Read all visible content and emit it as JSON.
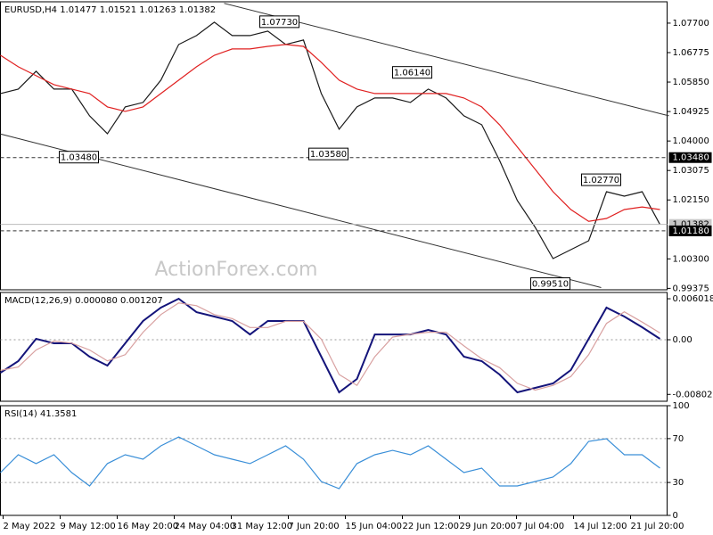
{
  "chart_data": [
    {
      "type": "line",
      "title": "EURUSD,H4  1.01477 1.01521 1.01263 1.01382",
      "watermark": "ActionForex.com",
      "x": [
        0,
        2,
        4,
        6,
        8,
        10,
        12,
        14,
        16,
        18,
        20,
        22,
        24,
        26,
        28,
        30,
        32,
        34,
        36,
        38,
        40,
        42,
        44,
        46,
        48,
        50,
        52,
        54,
        56,
        58,
        60,
        62,
        64,
        66,
        68,
        70,
        72,
        74
      ],
      "xlim": [
        0,
        74.8
      ],
      "ylim": [
        0.9933,
        1.0837
      ],
      "yticks": [
        {
          "value": 1.077,
          "label": "1.07700"
        },
        {
          "value": 1.06775,
          "label": "1.06775"
        },
        {
          "value": 1.0585,
          "label": "1.05850"
        },
        {
          "value": 1.04925,
          "label": "1.04925"
        },
        {
          "value": 1.04,
          "label": "1.04000"
        },
        {
          "value": 1.03075,
          "label": "1.03075"
        },
        {
          "value": 1.0215,
          "label": "1.02150"
        },
        {
          "value": 1.003,
          "label": "1.00300"
        },
        {
          "value": 0.99375,
          "label": "0.99375"
        }
      ],
      "series": [
        {
          "color": "#1a1a1a",
          "values": [
            1.0549,
            1.0563,
            1.0619,
            1.0563,
            1.0563,
            1.0479,
            1.0423,
            1.0507,
            1.0521,
            1.0591,
            1.0703,
            1.0731,
            1.0773,
            1.0731,
            1.0731,
            1.0745,
            1.0703,
            1.0717,
            1.0549,
            1.0437,
            1.0507,
            1.0535,
            1.0535,
            1.0521,
            1.0563,
            1.0535,
            1.0479,
            1.0451,
            1.0339,
            1.0213,
            1.0129,
            1.0031,
            1.0059,
            1.0087,
            1.0241,
            1.0227,
            1.0241,
            1.0138
          ]
        },
        {
          "color": "#e02020",
          "values": [
            1.0669,
            1.0633,
            1.0605,
            1.0577,
            1.0563,
            1.0549,
            1.0507,
            1.0493,
            1.0507,
            1.0549,
            1.0591,
            1.0633,
            1.0669,
            1.0689,
            1.0689,
            1.0697,
            1.0703,
            1.0697,
            1.0647,
            1.0591,
            1.0563,
            1.0549,
            1.0549,
            1.0549,
            1.0549,
            1.0549,
            1.0535,
            1.0507,
            1.0451,
            1.0381,
            1.0311,
            1.0241,
            1.0185,
            1.0148,
            1.0157,
            1.0185,
            1.0193,
            1.0185
          ]
        }
      ],
      "hlines": [
        {
          "value": 1.0348,
          "label": "1.03480",
          "style": "dashed"
        },
        {
          "value": 1.01382,
          "label": "1.01382",
          "style": "solid"
        },
        {
          "value": 1.0118,
          "label": "1.01180",
          "style": "dashed"
        }
      ],
      "annotations": [
        {
          "label": "1.07730",
          "x": 31.3,
          "value": 1.0773
        },
        {
          "label": "1.06140",
          "x": 46.2,
          "value": 1.0614
        },
        {
          "label": "1.03480",
          "x": 8.8,
          "value": 1.0348
        },
        {
          "label": "1.03580",
          "x": 36.8,
          "value": 1.0358
        },
        {
          "label": "1.02770",
          "x": 67.4,
          "value": 1.0277
        },
        {
          "label": "0.99510",
          "x": 61.7,
          "value": 0.9951
        }
      ],
      "trendlines": [
        {
          "x": [
            25.1,
            75
          ],
          "y": [
            1.0832,
            1.0479
          ]
        },
        {
          "x": [
            0,
            67.4
          ],
          "y": [
            1.0422,
            0.994
          ]
        }
      ]
    },
    {
      "type": "line",
      "title": "MACD(12,26,9) 0.000080 0.001207",
      "ylim": [
        -0.00903,
        0.00694
      ],
      "yticks": [
        0.006018,
        {
          "value": 0,
          "label": "0.00"
        },
        -0.00802
      ],
      "levels": [
        0
      ],
      "series": [
        {
          "color": "#14147a",
          "values": [
            -0.00484,
            -0.00314,
            0.00013,
            -0.00052,
            -0.00052,
            -0.00249,
            -0.00379,
            -0.00052,
            0.00275,
            0.00471,
            0.00602,
            0.00405,
            0.0034,
            0.00275,
            0.00078,
            0.00275,
            0.00275,
            0.00275,
            -0.00249,
            -0.00772,
            -0.00576,
            0.00078,
            0.00078,
            0.00078,
            0.00144,
            0.00078,
            -0.00249,
            -0.00314,
            -0.0051,
            -0.00772,
            -0.00706,
            -0.00641,
            -0.00445,
            0.00013,
            0.00471,
            0.0034,
            0.00183,
            0.00013
          ]
        },
        {
          "color": "#d8a0a0",
          "values": [
            -0.0045,
            -0.004,
            -0.0015,
            -0.0002,
            -0.0005,
            -0.0015,
            -0.0031,
            -0.0022,
            0.0011,
            0.0037,
            0.0054,
            0.005,
            0.0037,
            0.0031,
            0.0018,
            0.0018,
            0.0027,
            0.0027,
            0.0001,
            -0.0051,
            -0.0067,
            -0.0025,
            0.0004,
            0.0008,
            0.0011,
            0.0011,
            -0.0009,
            -0.0028,
            -0.0041,
            -0.0064,
            -0.0074,
            -0.0067,
            -0.0054,
            -0.0022,
            0.0024,
            0.0041,
            0.0026,
            0.001
          ]
        }
      ]
    },
    {
      "type": "line",
      "title": "RSI(14) 41.3581",
      "ylim": [
        0,
        100
      ],
      "yticks": [
        100,
        70,
        30,
        0
      ],
      "levels": [
        70,
        30
      ],
      "series": [
        {
          "color": "#3a8fd8",
          "values": [
            39.0,
            55.3,
            47.2,
            55.3,
            39.0,
            26.8,
            47.2,
            55.3,
            51.2,
            63.4,
            71.5,
            63.4,
            55.3,
            51.2,
            47.2,
            55.3,
            63.4,
            51.2,
            30.9,
            24.4,
            47.2,
            55.3,
            59.3,
            55.3,
            63.4,
            51.2,
            39.0,
            43.1,
            26.8,
            26.8,
            30.9,
            35.0,
            47.2,
            67.5,
            69.9,
            55.3,
            55.3,
            43.1
          ]
        }
      ],
      "xticks": [
        {
          "value": 0.3,
          "label": "2 May 2022"
        },
        {
          "value": 6.7,
          "label": "9 May 12:00"
        },
        {
          "value": 13.1,
          "label": "16 May 20:00"
        },
        {
          "value": 19.5,
          "label": "24 May 04:00"
        },
        {
          "value": 25.9,
          "label": "31 May 12:00"
        },
        {
          "value": 32.3,
          "label": "7 Jun 20:00"
        },
        {
          "value": 38.7,
          "label": "15 Jun 04:00"
        },
        {
          "value": 45.1,
          "label": "22 Jun 12:00"
        },
        {
          "value": 51.5,
          "label": "29 Jun 20:00"
        },
        {
          "value": 57.9,
          "label": "7 Jul 04:00"
        },
        {
          "value": 64.3,
          "label": "14 Jul 12:00"
        },
        {
          "value": 70.7,
          "label": "21 Jul 20:00"
        }
      ]
    }
  ]
}
